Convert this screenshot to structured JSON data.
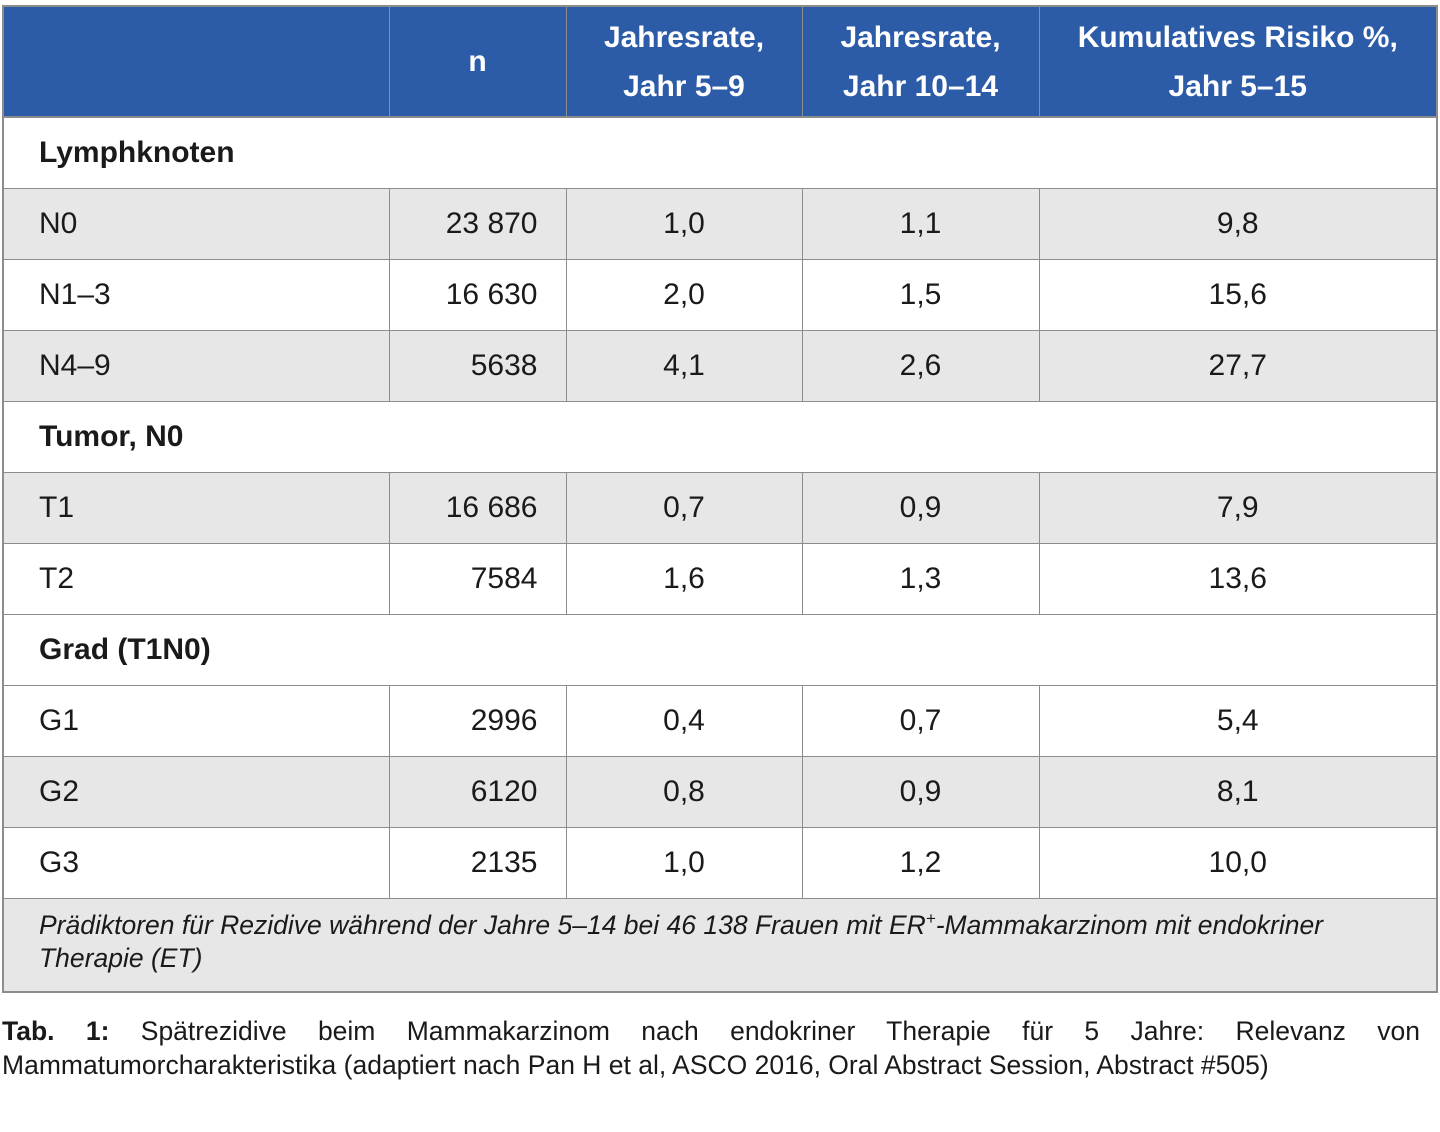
{
  "table": {
    "headers": [
      "",
      "n",
      [
        "Jahresrate,",
        "Jahr 5–9"
      ],
      [
        "Jahresrate,",
        "Jahr 10–14"
      ],
      [
        "Kumulatives Risiko %,",
        "Jahr 5–15"
      ]
    ],
    "sections": [
      {
        "title": "Lymphknoten",
        "rows": [
          {
            "label": "N0",
            "n": "23 870",
            "rate_5_9": "1,0",
            "rate_10_14": "1,1",
            "cum_risk": "9,8"
          },
          {
            "label": "N1–3",
            "n": "16 630",
            "rate_5_9": "2,0",
            "rate_10_14": "1,5",
            "cum_risk": "15,6"
          },
          {
            "label": "N4–9",
            "n": "5638",
            "rate_5_9": "4,1",
            "rate_10_14": "2,6",
            "cum_risk": "27,7"
          }
        ]
      },
      {
        "title": "Tumor, N0",
        "rows": [
          {
            "label": "T1",
            "n": "16 686",
            "rate_5_9": "0,7",
            "rate_10_14": "0,9",
            "cum_risk": "7,9"
          },
          {
            "label": "T2",
            "n": "7584",
            "rate_5_9": "1,6",
            "rate_10_14": "1,3",
            "cum_risk": "13,6"
          }
        ]
      },
      {
        "title": "Grad (T1N0)",
        "rows": [
          {
            "label": "G1",
            "n": "2996",
            "rate_5_9": "0,4",
            "rate_10_14": "0,7",
            "cum_risk": "5,4"
          },
          {
            "label": "G2",
            "n": "6120",
            "rate_5_9": "0,8",
            "rate_10_14": "0,9",
            "cum_risk": "8,1"
          },
          {
            "label": "G3",
            "n": "2135",
            "rate_5_9": "1,0",
            "rate_10_14": "1,2",
            "cum_risk": "10,0"
          }
        ]
      }
    ],
    "footnote": {
      "before": "Prädiktoren für Rezidive während der Jahre 5–14 bei 46 138 Frauen mit ER",
      "sup": "+",
      "after": "-Mammakarzinom mit endokriner Therapie (ET)"
    }
  },
  "caption": {
    "label": "Tab. 1:",
    "text": " Spätrezidive beim Mammakarzinom nach endokriner Therapie für 5 Jahre: Relevanz von Mammatumorcharakteristika (adaptiert nach Pan H et al, ASCO 2016, Oral Abstract Session, Abstract #505)"
  },
  "colors": {
    "header_bg": "#2c5ba8",
    "shaded_row_bg": "#e7e7e7",
    "border": "#8c8c8c"
  }
}
